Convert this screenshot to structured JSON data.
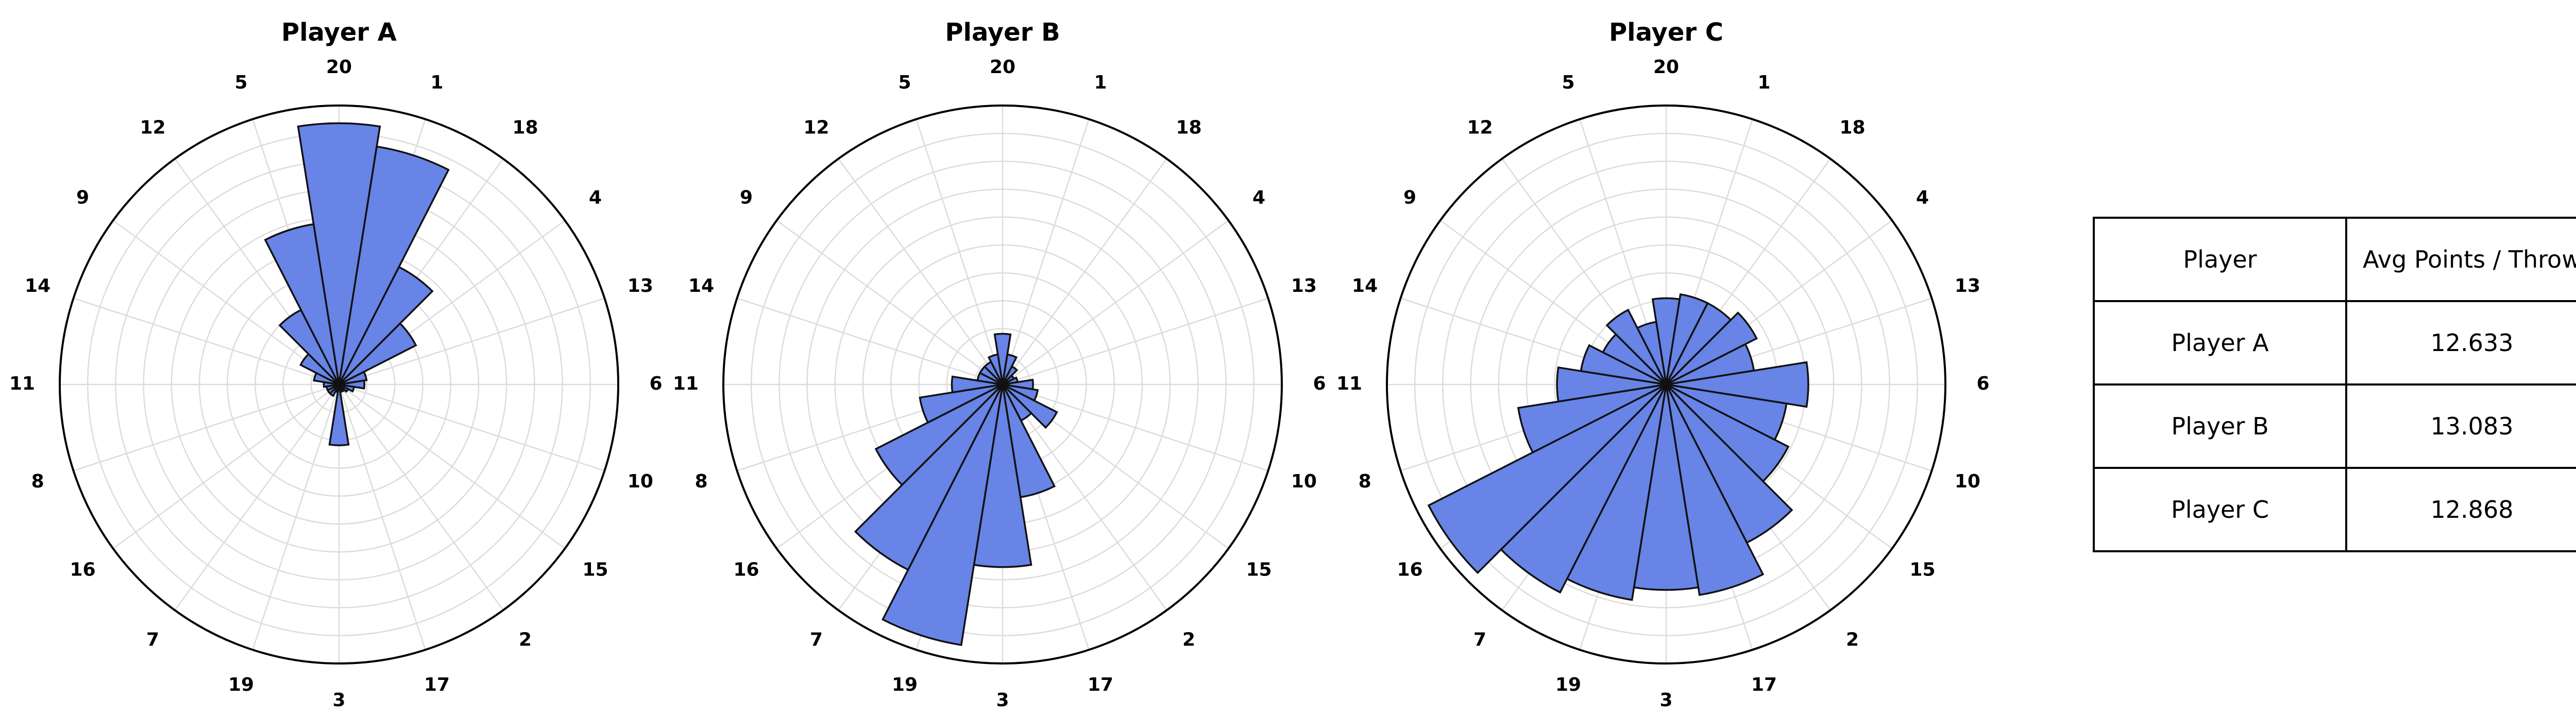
{
  "chart_data": [
    {
      "type": "polar-bar",
      "title": "Player A",
      "sectors": [
        "20",
        "1",
        "18",
        "4",
        "13",
        "6",
        "10",
        "15",
        "2",
        "17",
        "3",
        "19",
        "7",
        "16",
        "8",
        "11",
        "14",
        "9",
        "12",
        "5"
      ],
      "values": [
        10.3,
        9.5,
        5.2,
        3.4,
        1.1,
        1.0,
        0.6,
        0.4,
        0.3,
        0.3,
        2.4,
        0.3,
        0.5,
        0.5,
        0.5,
        0.6,
        1.0,
        1.7,
        3.3,
        6.4
      ],
      "rlim": [
        0,
        11
      ],
      "grid": true,
      "bar_color": "#6784e6"
    },
    {
      "type": "polar-bar",
      "title": "Player B",
      "sectors": [
        "20",
        "1",
        "18",
        "4",
        "13",
        "6",
        "10",
        "15",
        "2",
        "17",
        "3",
        "19",
        "7",
        "16",
        "8",
        "11",
        "14",
        "9",
        "12",
        "5"
      ],
      "values": [
        2.0,
        1.2,
        0.8,
        0.5,
        0.6,
        1.2,
        1.4,
        2.4,
        1.6,
        4.5,
        7.2,
        10.4,
        8.2,
        5.6,
        3.3,
        2.0,
        1.0,
        1.0,
        1.0,
        1.2
      ],
      "rlim": [
        0,
        11
      ],
      "grid": true,
      "bar_color": "#6784e6"
    },
    {
      "type": "polar-bar",
      "title": "Player C",
      "sectors": [
        "20",
        "1",
        "18",
        "4",
        "13",
        "6",
        "10",
        "15",
        "2",
        "17",
        "3",
        "19",
        "7",
        "16",
        "8",
        "11",
        "14",
        "9",
        "12",
        "5"
      ],
      "values": [
        3.4,
        3.6,
        3.6,
        4.0,
        3.5,
        5.6,
        4.8,
        5.4,
        7.0,
        8.4,
        8.1,
        8.6,
        9.2,
        10.5,
        5.9,
        4.3,
        3.4,
        2.8,
        3.3,
        2.5
      ],
      "rlim": [
        0,
        11
      ],
      "grid": true,
      "bar_color": "#6784e6"
    },
    {
      "type": "table",
      "columns": [
        "Player",
        "Avg Points / Throw"
      ],
      "rows": [
        [
          "Player A",
          "12.633"
        ],
        [
          "Player B",
          "13.083"
        ],
        [
          "Player C",
          "12.868"
        ]
      ]
    }
  ]
}
